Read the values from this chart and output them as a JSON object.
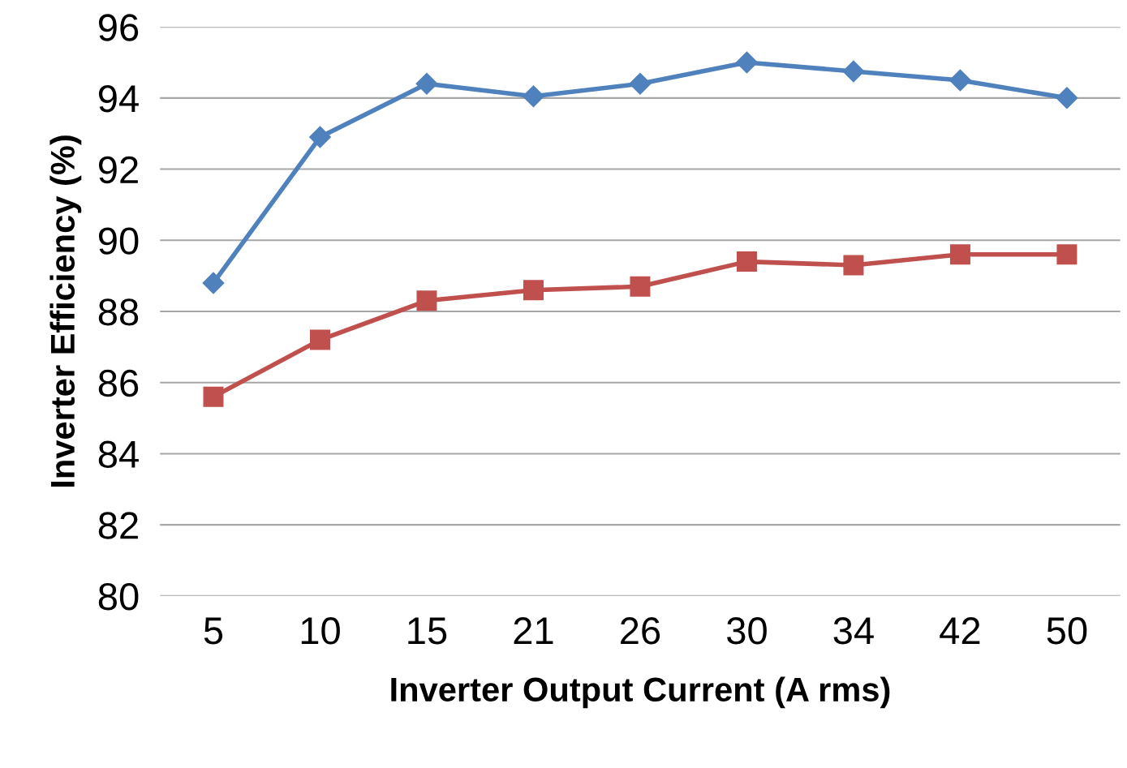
{
  "chart_data": {
    "type": "line",
    "xlabel": "Inverter Output Current (A rms)",
    "ylabel": "Inverter Efficiency (%)",
    "categories": [
      "5",
      "10",
      "15",
      "21",
      "26",
      "30",
      "34",
      "42",
      "50"
    ],
    "series": [
      {
        "color": "#4f81bd",
        "marker": "diamond",
        "values": [
          88.8,
          92.9,
          94.4,
          94.05,
          94.4,
          95.0,
          94.75,
          94.5,
          94.0
        ]
      },
      {
        "color": "#c0504d",
        "marker": "square",
        "values": [
          85.6,
          87.2,
          88.3,
          88.6,
          88.7,
          89.4,
          89.3,
          89.6,
          89.6
        ]
      }
    ],
    "ylim": [
      80,
      96
    ],
    "yticks": [
      80,
      82,
      84,
      86,
      88,
      90,
      92,
      94,
      96
    ],
    "grid": "y",
    "line_style": "solid"
  }
}
